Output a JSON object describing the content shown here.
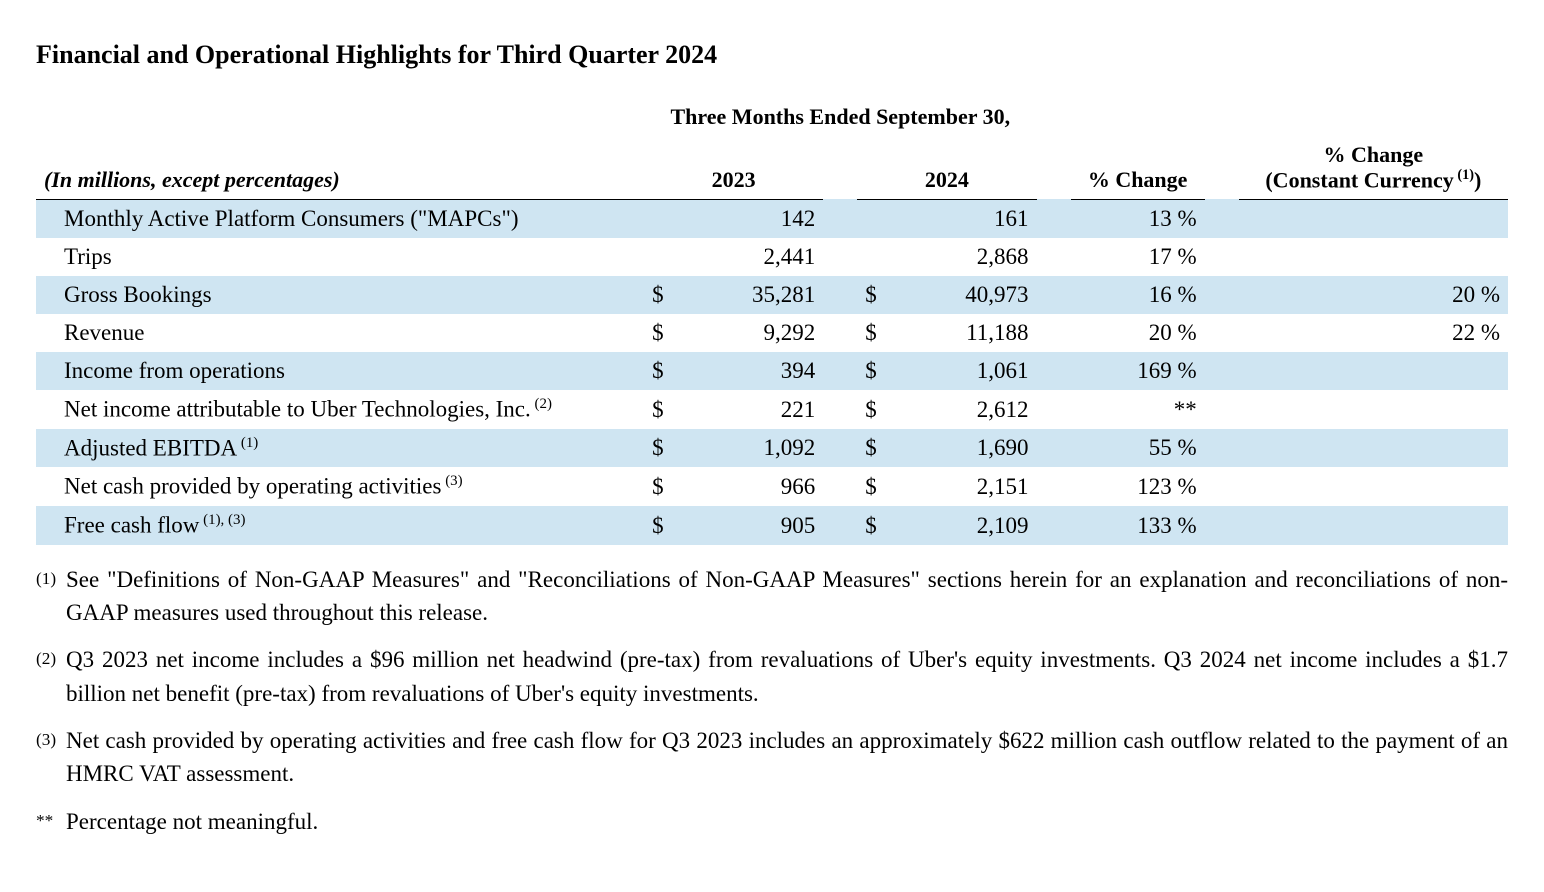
{
  "title": "Financial and Operational Highlights for Third Quarter 2024",
  "table": {
    "spanner": "Three Months Ended September 30,",
    "header_label": "(In millions, except percentages)",
    "col_2023": "2023",
    "col_2024": "2024",
    "col_change": "% Change",
    "col_cc_line1": "% Change",
    "col_cc_line2": "(Constant Currency",
    "col_cc_sup": " (1)",
    "col_cc_line2_end": ")",
    "rows": [
      {
        "label": "Monthly Active Platform Consumers (\"MAPCs\")",
        "cur23": "",
        "v23": "142",
        "cur24": "",
        "v24": "161",
        "chg": "13 %",
        "cc": ""
      },
      {
        "label": "Trips",
        "cur23": "",
        "v23": "2,441",
        "cur24": "",
        "v24": "2,868",
        "chg": "17 %",
        "cc": ""
      },
      {
        "label": "Gross Bookings",
        "cur23": "$",
        "v23": "35,281",
        "cur24": "$",
        "v24": "40,973",
        "chg": "16 %",
        "cc": "20 %"
      },
      {
        "label": "Revenue",
        "cur23": "$",
        "v23": "9,292",
        "cur24": "$",
        "v24": "11,188",
        "chg": "20 %",
        "cc": "22 %"
      },
      {
        "label": "Income from operations",
        "cur23": "$",
        "v23": "394",
        "cur24": "$",
        "v24": "1,061",
        "chg": "169 %",
        "cc": ""
      },
      {
        "label": "Net income attributable to Uber Technologies, Inc.",
        "sup": " (2)",
        "cur23": "$",
        "v23": "221",
        "cur24": "$",
        "v24": "2,612",
        "chg": "**",
        "cc": ""
      },
      {
        "label": "Adjusted EBITDA",
        "sup": " (1)",
        "cur23": "$",
        "v23": "1,092",
        "cur24": "$",
        "v24": "1,690",
        "chg": "55 %",
        "cc": ""
      },
      {
        "label": "Net cash provided by operating activities",
        "sup": " (3)",
        "cur23": "$",
        "v23": "966",
        "cur24": "$",
        "v24": "2,151",
        "chg": "123 %",
        "cc": ""
      },
      {
        "label": "Free cash flow",
        "sup": " (1), (3)",
        "cur23": "$",
        "v23": "905",
        "cur24": "$",
        "v24": "2,109",
        "chg": "133 %",
        "cc": ""
      }
    ]
  },
  "footnotes": [
    {
      "marker": "(1)",
      "text": "See \"Definitions of Non-GAAP Measures\" and \"Reconciliations of Non-GAAP Measures\" sections herein for an explanation and reconciliations of non-GAAP measures used throughout this release."
    },
    {
      "marker": "(2)",
      "text": "Q3 2023 net income includes a $96 million net headwind (pre-tax) from revaluations of Uber's equity investments. Q3 2024 net income includes a $1.7 billion net benefit (pre-tax) from revaluations of Uber's equity investments."
    },
    {
      "marker": "(3)",
      "text": "Net cash provided by operating activities and free cash flow for Q3 2023 includes an approximately $622 million cash outflow related to the payment of an HMRC VAT assessment."
    },
    {
      "marker": "**",
      "text": "Percentage not meaningful."
    }
  ],
  "style": {
    "alt_row_bg": "#cfe5f2",
    "text_color": "#000000",
    "bg_color": "#ffffff"
  }
}
